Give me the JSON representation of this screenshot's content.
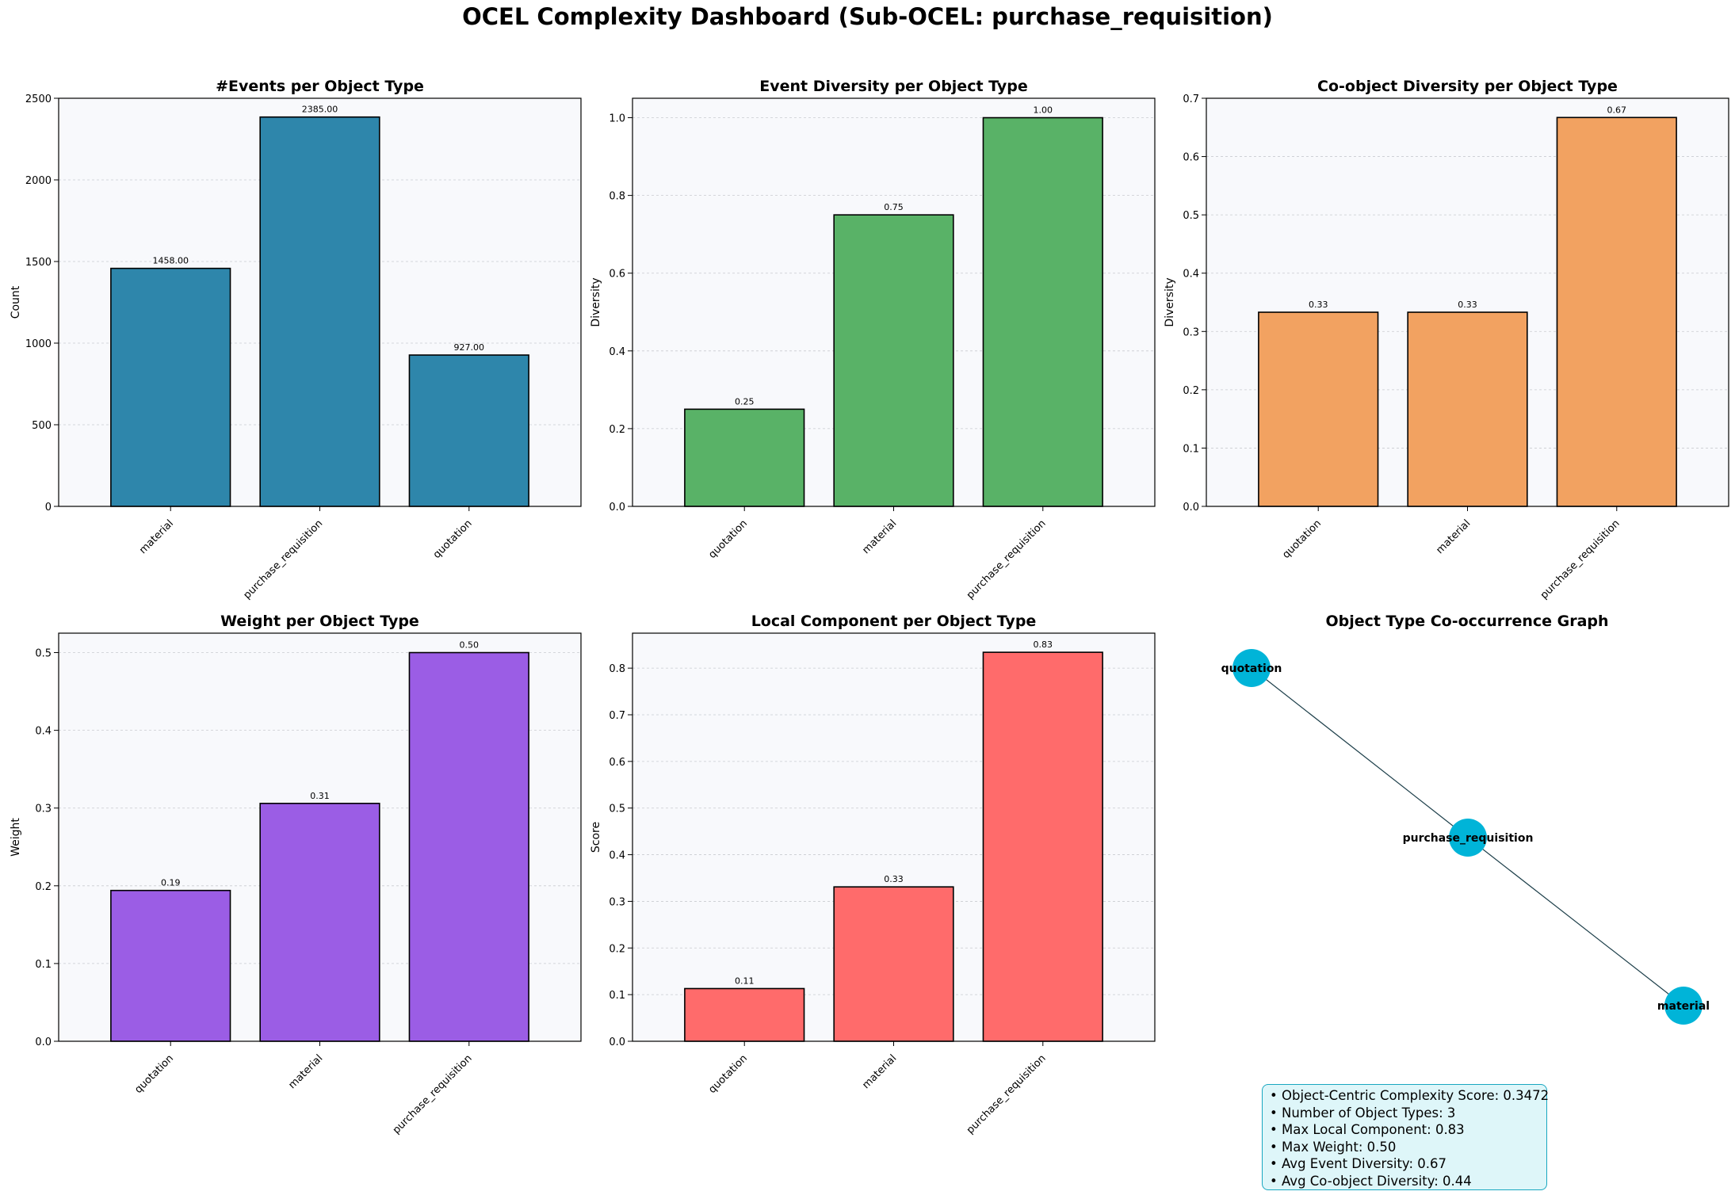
{
  "title": "OCEL Complexity Dashboard (Sub-OCEL: purchase_requisition)",
  "chart_data": [
    {
      "id": "events",
      "type": "bar",
      "title": "#Events per Object Type",
      "ylabel": "Count",
      "categories": [
        "material",
        "purchase_requisition",
        "quotation"
      ],
      "values": [
        1458,
        2385,
        927
      ],
      "value_labels": [
        "1458.00",
        "2385.00",
        "927.00"
      ],
      "ylim": [
        0,
        2500
      ],
      "yticks": [
        0,
        500,
        1000,
        1500,
        2000,
        2500
      ],
      "ytick_labels": [
        "0",
        "500",
        "1000",
        "1500",
        "2000",
        "2500"
      ],
      "color": "#2e86ab",
      "grid": "horizontal"
    },
    {
      "id": "event-diversity",
      "type": "bar",
      "title": "Event Diversity per Object Type",
      "ylabel": "Diversity",
      "categories": [
        "quotation",
        "material",
        "purchase_requisition"
      ],
      "values": [
        0.25,
        0.75,
        1.0
      ],
      "value_labels": [
        "0.25",
        "0.75",
        "1.00"
      ],
      "ylim": [
        0,
        1.05
      ],
      "yticks": [
        0,
        0.2,
        0.4,
        0.6,
        0.8,
        1.0
      ],
      "ytick_labels": [
        "0.0",
        "0.2",
        "0.4",
        "0.6",
        "0.8",
        "1.0"
      ],
      "color": "#59b267",
      "grid": "horizontal"
    },
    {
      "id": "coobject-diversity",
      "type": "bar",
      "title": "Co-object Diversity per Object Type",
      "ylabel": "Diversity",
      "categories": [
        "quotation",
        "material",
        "purchase_requisition"
      ],
      "values": [
        0.333,
        0.333,
        0.667
      ],
      "value_labels": [
        "0.33",
        "0.33",
        "0.67"
      ],
      "ylim": [
        0,
        0.7
      ],
      "yticks": [
        0,
        0.1,
        0.2,
        0.3,
        0.4,
        0.5,
        0.6,
        0.7
      ],
      "ytick_labels": [
        "0.0",
        "0.1",
        "0.2",
        "0.3",
        "0.4",
        "0.5",
        "0.6",
        "0.7"
      ],
      "color": "#f2a261",
      "grid": "horizontal"
    },
    {
      "id": "weight",
      "type": "bar",
      "title": "Weight per Object Type",
      "ylabel": "Weight",
      "categories": [
        "quotation",
        "material",
        "purchase_requisition"
      ],
      "values": [
        0.194,
        0.306,
        0.5
      ],
      "value_labels": [
        "0.19",
        "0.31",
        "0.50"
      ],
      "ylim": [
        0,
        0.525
      ],
      "yticks": [
        0,
        0.1,
        0.2,
        0.3,
        0.4,
        0.5
      ],
      "ytick_labels": [
        "0.0",
        "0.1",
        "0.2",
        "0.3",
        "0.4",
        "0.5"
      ],
      "color": "#9b5de5",
      "grid": "horizontal"
    },
    {
      "id": "local-component",
      "type": "bar",
      "title": "Local Component per Object Type",
      "ylabel": "Score",
      "categories": [
        "quotation",
        "material",
        "purchase_requisition"
      ],
      "values": [
        0.113,
        0.331,
        0.834
      ],
      "value_labels": [
        "0.11",
        "0.33",
        "0.83"
      ],
      "ylim": [
        0,
        0.875
      ],
      "yticks": [
        0,
        0.1,
        0.2,
        0.3,
        0.4,
        0.5,
        0.6,
        0.7,
        0.8
      ],
      "ytick_labels": [
        "0.0",
        "0.1",
        "0.2",
        "0.3",
        "0.4",
        "0.5",
        "0.6",
        "0.7",
        "0.8"
      ],
      "color": "#ff6b6b",
      "grid": "horizontal"
    }
  ],
  "graph": {
    "title": "Object Type Co-occurrence Graph",
    "nodes": [
      "quotation",
      "purchase_requisition",
      "material"
    ],
    "edges": [
      [
        "quotation",
        "purchase_requisition"
      ],
      [
        "purchase_requisition",
        "material"
      ]
    ],
    "node_color": "#00b4d8",
    "edge_color": "#1d3f4a"
  },
  "summary": [
    "• Object-Centric Complexity Score: 0.3472",
    "• Number of Object Types: 3",
    "• Max Local Component: 0.83",
    "• Max Weight: 0.50",
    "• Avg Event Diversity: 0.67",
    "• Avg Co-object Diversity: 0.44"
  ]
}
